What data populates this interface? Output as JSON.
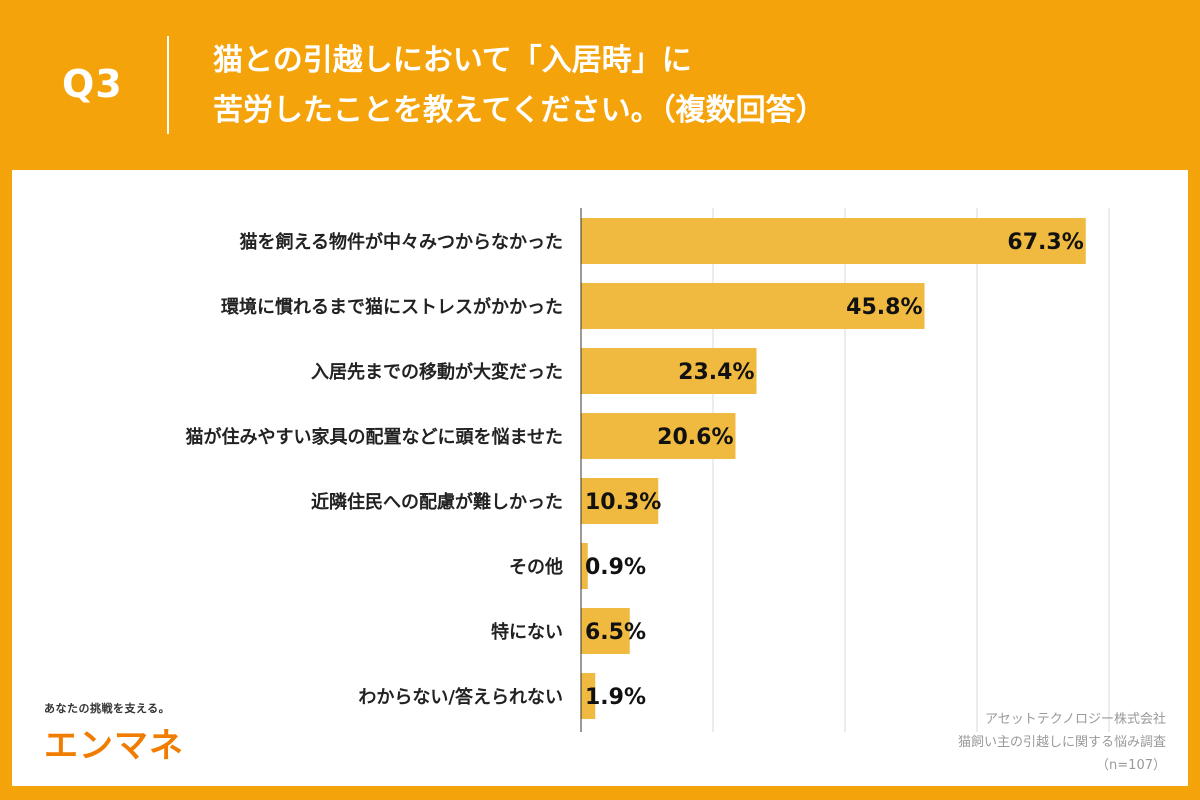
{
  "header": {
    "question_no": "Q3",
    "title_line1": "猫との引越しにおいて「入居時」に",
    "title_line2": "苦労したことを教えてください。（複数回答）"
  },
  "chart_data": {
    "type": "bar",
    "orientation": "horizontal",
    "categories": [
      "猫を飼える物件が中々みつからなかった",
      "環境に慣れるまで猫にストレスがかかった",
      "入居先までの移動が大変だった",
      "猫が住みやすい家具の配置などに頭を悩ませた",
      "近隣住民への配慮が難しかった",
      "その他",
      "特にない",
      "わからない/答えられない"
    ],
    "values": [
      67.3,
      45.8,
      23.4,
      20.6,
      10.3,
      0.9,
      6.5,
      1.9
    ],
    "value_labels": [
      "67.3%",
      "45.8%",
      "23.4%",
      "20.6%",
      "10.3%",
      "0.9%",
      "6.5%",
      "1.9%"
    ],
    "xlim": [
      0,
      70
    ],
    "grid": true,
    "bar_color": "#efba3f"
  },
  "brand": {
    "tagline": "あなたの挑戦を支える。",
    "logo": "エンマネ"
  },
  "source": {
    "line1": "アセットテクノロジー株式会社",
    "line2": "猫飼い主の引越しに関する悩み調査",
    "line3": "（n=107）"
  }
}
